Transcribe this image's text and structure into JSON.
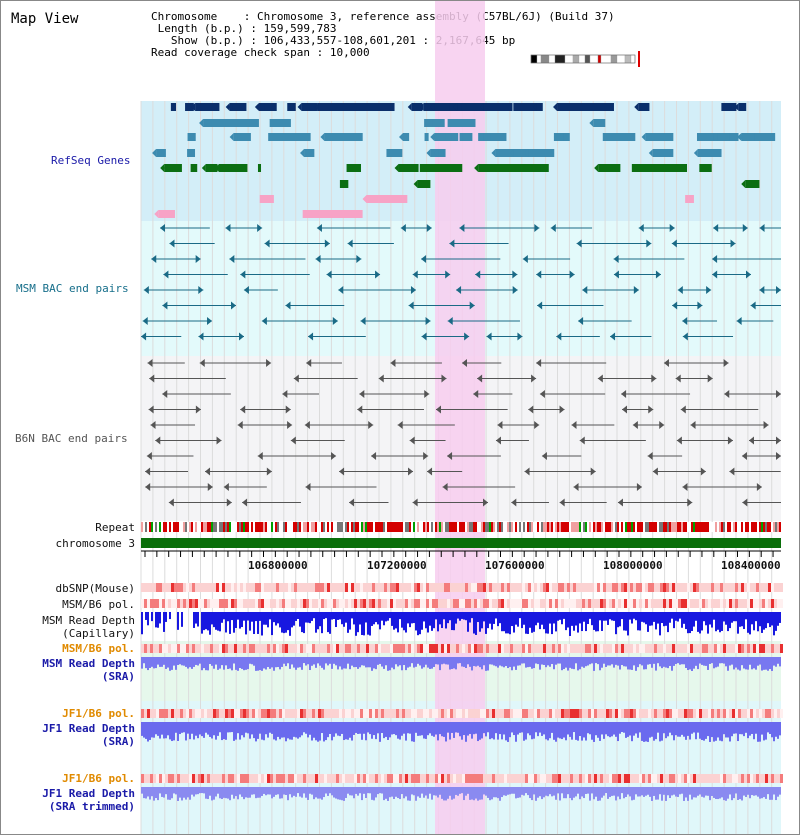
{
  "title": "Map View",
  "info": {
    "chromosome_label": "Chromosome",
    "chromosome_value": "Chromosome 3, reference assembly (C57BL/6J) (Build 37)",
    "length_label": "Length (b.p.)",
    "length_value": "159,599,783",
    "show_label": "Show (b.p.)",
    "show_value": "106,433,557-108,601,201 : 2,167,645 bp",
    "span_label": "Read coverage check span",
    "span_value": "10,000"
  },
  "tracks": {
    "refseq": "RefSeq Genes",
    "msm_bac": "MSM BAC end pairs",
    "b6n_bac": "B6N BAC end pairs",
    "repeat": "Repeat",
    "chromosome": "chromosome 3",
    "dbsnp": "dbSNP(Mouse)",
    "msm_pol": "MSM/B6 pol.",
    "msm_depth_cap_1": "MSM Read Depth",
    "msm_depth_cap_2": "(Capillary)",
    "msm_pol2": "MSM/B6 pol.",
    "msm_depth_sra_1": "MSM Read Depth",
    "msm_depth_sra_2": "(SRA)",
    "jf1_pol": "JF1/B6 pol.",
    "jf1_depth_sra_1": "JF1 Read Depth",
    "jf1_depth_sra_2": "(SRA)",
    "jf1_pol2": "JF1/B6 pol.",
    "jf1_depth_trim_1": "JF1 Read Depth",
    "jf1_depth_trim_2": "(SRA trimmed)"
  },
  "ruler": {
    "ticks": [
      "106800000",
      "107200000",
      "107600000",
      "108000000",
      "108400000"
    ]
  },
  "colors": {
    "refseq_bg": "#d3eef8",
    "refseq_dark": "#0a2f6b",
    "refseq_mid": "#3d8bb0",
    "refseq_green": "#0b6e12",
    "refseq_pink": "#f7a3c6",
    "msm_bg": "#e3fafb",
    "msm_line": "#1a6a86",
    "b6n_bg": "#f4f4f6",
    "b6n_line": "#555",
    "highlight": "#f7cdef",
    "chrom_green": "#0a6e0a",
    "depth_blue": "#1818e0",
    "depth_light": "#7878f0"
  }
}
